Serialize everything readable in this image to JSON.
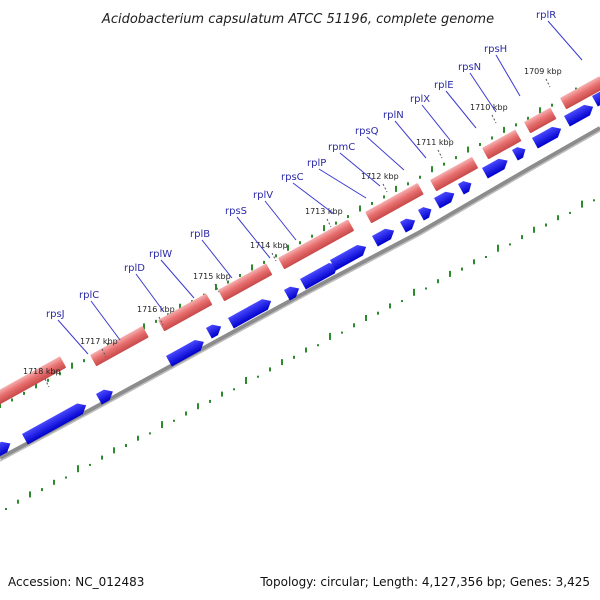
{
  "title": "Acidobacterium capsulatum ATCC 51196, complete genome",
  "accession": "Accession: NC_012483",
  "topology": "Topology: circular; Length: 4,127,356 bp; Genes: 3,425",
  "colors": {
    "forward_gene": "#e86a6a",
    "reverse_gene": "#1010ee",
    "backbone": "#777777",
    "gc_ticks": "#2d8a2d",
    "gene_label": "#2a2aa8"
  },
  "kbp_labels": [
    "1709 kbp",
    "1710 kbp",
    "1711 kbp",
    "1712 kbp",
    "1713 kbp",
    "1714 kbp",
    "1715 kbp",
    "1716 kbp",
    "1717 kbp",
    "1718 kbp"
  ],
  "gene_labels": [
    "rplR",
    "rpsH",
    "rpsN",
    "rplE",
    "rplX",
    "rplN",
    "rpsQ",
    "rpmC",
    "rplP",
    "rpsC",
    "rplV",
    "rpsS",
    "rplB",
    "rplW",
    "rplD",
    "rplC",
    "rpsJ"
  ]
}
